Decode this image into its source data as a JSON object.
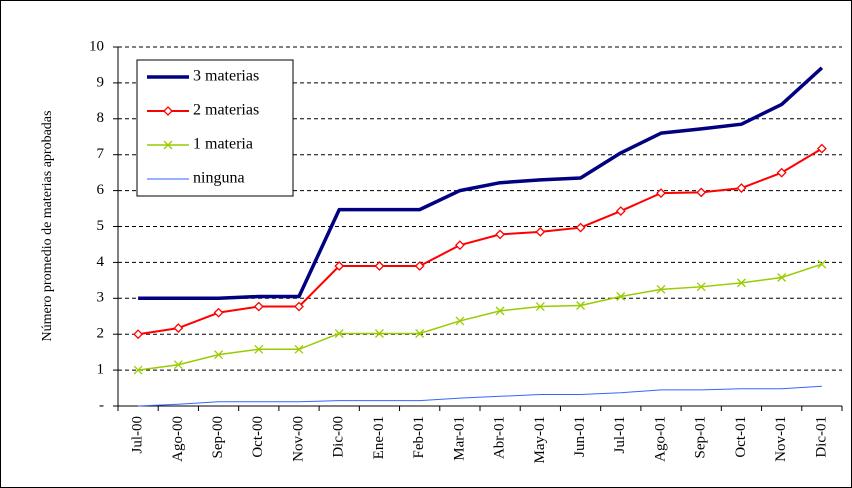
{
  "chart_data": {
    "type": "line",
    "y_label": "Número promedio de materias aprobadas",
    "categories": [
      "Jul-00",
      "Ago-00",
      "Sep-00",
      "Oct-00",
      "Nov-00",
      "Dic-00",
      "Ene-01",
      "Feb-01",
      "Mar-01",
      "Abr-01",
      "May-01",
      "Jun-01",
      "Jul-01",
      "Ago-01",
      "Sep-01",
      "Oct-01",
      "Nov-01",
      "Dic-01"
    ],
    "series": [
      {
        "name": "3 materias",
        "color": "#000080",
        "width": 3.5,
        "marker": "none",
        "values": [
          3,
          3,
          3,
          3.05,
          3.05,
          5.47,
          5.47,
          5.47,
          6.0,
          6.22,
          6.3,
          6.35,
          7.05,
          7.6,
          7.72,
          7.85,
          8.4,
          9.42
        ]
      },
      {
        "name": "2 materias",
        "color": "#ff0000",
        "width": 2,
        "marker": "diamond",
        "values": [
          2.0,
          2.17,
          2.6,
          2.77,
          2.77,
          3.9,
          3.9,
          3.9,
          4.48,
          4.78,
          4.85,
          4.97,
          5.43,
          5.93,
          5.95,
          6.07,
          6.5,
          7.17
        ]
      },
      {
        "name": "1 materia",
        "color": "#99cc00",
        "width": 1.5,
        "marker": "x",
        "values": [
          1.0,
          1.15,
          1.43,
          1.58,
          1.58,
          2.02,
          2.02,
          2.02,
          2.37,
          2.65,
          2.77,
          2.8,
          3.05,
          3.25,
          3.32,
          3.43,
          3.58,
          3.95
        ]
      },
      {
        "name": "ninguna",
        "color": "#3366ff",
        "width": 1,
        "marker": "none",
        "values": [
          0,
          0.05,
          0.12,
          0.12,
          0.12,
          0.15,
          0.15,
          0.15,
          0.22,
          0.27,
          0.32,
          0.32,
          0.37,
          0.45,
          0.45,
          0.48,
          0.48,
          0.55
        ]
      }
    ],
    "ylim": [
      0,
      10
    ],
    "yticks": [
      {
        "value": 0,
        "label": "-"
      },
      1,
      2,
      3,
      4,
      5,
      6,
      7,
      8,
      9,
      10
    ],
    "grid": true,
    "legend": "top-left"
  }
}
